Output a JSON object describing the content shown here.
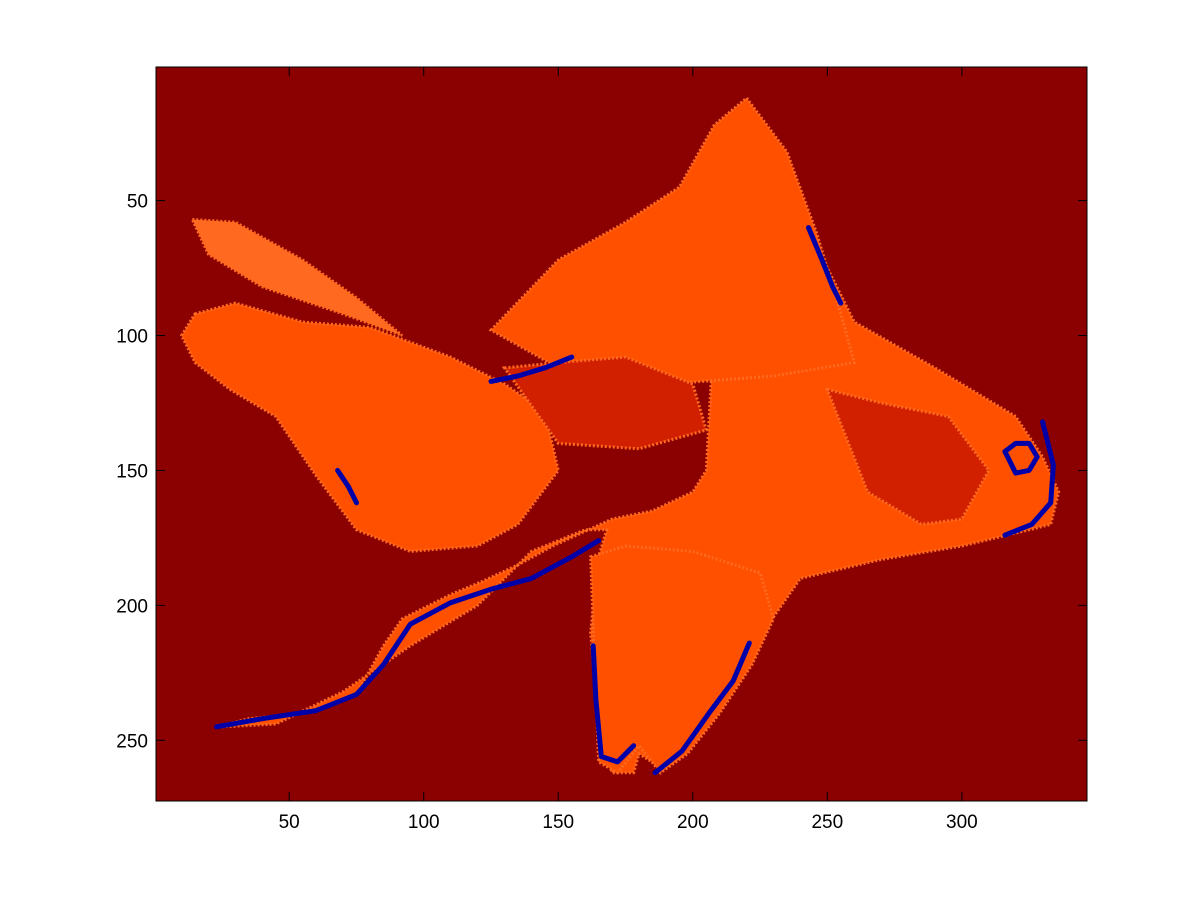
{
  "colors": {
    "background": "#8B0000",
    "body_primary": "#FF5000",
    "body_light": "#FF6A20",
    "body_dark": "#D02000",
    "edge_blue": "#0000A8",
    "axes_frame": "#000000"
  },
  "chart_data": {
    "type": "heatmap",
    "title": "",
    "xlabel": "",
    "ylabel": "",
    "image_size": {
      "columns": 346,
      "rows": 272
    },
    "xlim": [
      0.5,
      346.5
    ],
    "ylim": [
      0.5,
      272.5
    ],
    "y_direction": "reverse",
    "grid": false,
    "xticks": [
      50,
      100,
      150,
      200,
      250,
      300
    ],
    "yticks": [
      50,
      100,
      150,
      200,
      250
    ],
    "xtick_labels": [
      "50",
      "100",
      "150",
      "200",
      "250",
      "300"
    ],
    "ytick_labels": [
      "50",
      "100",
      "150",
      "200",
      "250"
    ],
    "colormap_levels": [
      "#8B0000",
      "#D02000",
      "#FF5000",
      "#FF6A20",
      "#0000A8"
    ],
    "regions": [
      {
        "name": "fish-body",
        "fill": "#FF5000",
        "outline_x": [
          23,
          35,
          55,
          75,
          85,
          92,
          110,
          122,
          135,
          148,
          170,
          185,
          200,
          205,
          208,
          212,
          220,
          240,
          260,
          290,
          320,
          330,
          336,
          333,
          325,
          300,
          270,
          240,
          226,
          222,
          205,
          195,
          188,
          180,
          178,
          170,
          165,
          162,
          165,
          168,
          160,
          140,
          120,
          95,
          70,
          45,
          25,
          23
        ],
        "outline_y": [
          245,
          242,
          240,
          233,
          215,
          205,
          196,
          191,
          185,
          178,
          168,
          165,
          158,
          150,
          95,
          70,
          80,
          55,
          95,
          112,
          130,
          145,
          158,
          170,
          172,
          178,
          183,
          190,
          210,
          215,
          230,
          245,
          260,
          255,
          262,
          262,
          245,
          210,
          182,
          172,
          172,
          180,
          200,
          215,
          232,
          244,
          245,
          245
        ]
      },
      {
        "name": "tail-fin",
        "fill": "#FF5000",
        "outline_x": [
          15,
          30,
          55,
          80,
          110,
          130,
          145,
          150,
          135,
          120,
          95,
          75,
          60,
          45,
          28,
          15,
          10,
          15
        ],
        "outline_y": [
          92,
          88,
          95,
          97,
          108,
          118,
          128,
          150,
          170,
          178,
          180,
          172,
          152,
          130,
          120,
          110,
          100,
          92
        ]
      },
      {
        "name": "upper-tail",
        "fill": "#FF6A20",
        "outline_x": [
          14,
          30,
          55,
          75,
          92,
          70,
          40,
          20,
          14
        ],
        "outline_y": [
          57,
          58,
          72,
          86,
          100,
          92,
          82,
          70,
          57
        ]
      },
      {
        "name": "dorsal-fin",
        "fill": "#FF5000",
        "outline_x": [
          125,
          150,
          175,
          195,
          208,
          220,
          235,
          246,
          255,
          260,
          230,
          190,
          150,
          125
        ],
        "outline_y": [
          98,
          72,
          58,
          45,
          22,
          12,
          32,
          62,
          92,
          110,
          115,
          118,
          112,
          98
        ]
      },
      {
        "name": "lower-fin",
        "fill": "#FF5000",
        "outline_x": [
          162,
          175,
          200,
          225,
          230,
          222,
          210,
          198,
          188,
          180,
          172,
          165,
          162
        ],
        "outline_y": [
          182,
          178,
          180,
          188,
          205,
          222,
          240,
          255,
          262,
          252,
          262,
          258,
          182
        ]
      },
      {
        "name": "head-shade",
        "fill": "#D02000",
        "outline_x": [
          250,
          270,
          295,
          310,
          300,
          285,
          265,
          250
        ],
        "outline_y": [
          120,
          125,
          130,
          150,
          168,
          170,
          158,
          120
        ]
      },
      {
        "name": "mid-body-shade",
        "fill": "#D02000",
        "outline_x": [
          130,
          150,
          175,
          200,
          205,
          180,
          150,
          130
        ],
        "outline_y": [
          112,
          110,
          108,
          118,
          135,
          142,
          140,
          112
        ]
      }
    ],
    "edges": [
      {
        "name": "belly-edge",
        "color": "#0000A8",
        "x": [
          23,
          40,
          60,
          75,
          85,
          95,
          110,
          125,
          140,
          155,
          165
        ],
        "y": [
          245,
          242,
          239,
          233,
          222,
          207,
          199,
          194,
          190,
          182,
          176
        ]
      },
      {
        "name": "lower-fin-edge-left",
        "color": "#0000A8",
        "x": [
          163,
          164,
          166,
          172,
          178
        ],
        "y": [
          215,
          235,
          256,
          258,
          252
        ]
      },
      {
        "name": "lower-fin-edge-right",
        "color": "#0000A8",
        "x": [
          186,
          196,
          206,
          215,
          221
        ],
        "y": [
          262,
          254,
          240,
          228,
          214
        ]
      },
      {
        "name": "dorsal-front-edge",
        "color": "#0000A8",
        "x": [
          243,
          248,
          252,
          255
        ],
        "y": [
          60,
          72,
          82,
          88
        ]
      },
      {
        "name": "snout-edge",
        "color": "#0000A8",
        "x": [
          330,
          334,
          333,
          326,
          316
        ],
        "y": [
          132,
          148,
          162,
          170,
          174
        ]
      },
      {
        "name": "back-edge",
        "color": "#0000A8",
        "x": [
          125,
          135,
          145,
          155
        ],
        "y": [
          117,
          115,
          112,
          108
        ]
      },
      {
        "name": "tail-lower-edge",
        "color": "#0000A8",
        "x": [
          68,
          72,
          75
        ],
        "y": [
          150,
          156,
          162
        ]
      },
      {
        "name": "eye-ring",
        "color": "#0000A8",
        "x": [
          316,
          320,
          325,
          328,
          325,
          320,
          316
        ],
        "y": [
          143,
          140,
          140,
          145,
          150,
          151,
          143
        ]
      }
    ]
  }
}
